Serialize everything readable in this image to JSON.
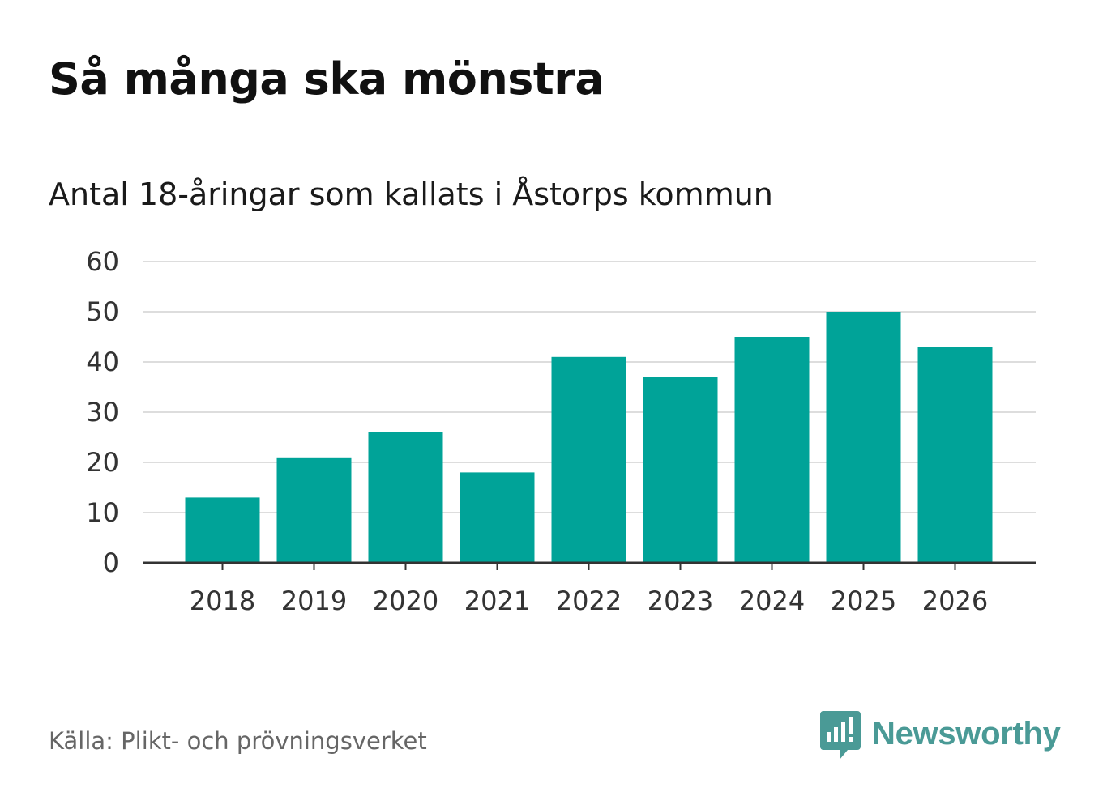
{
  "title": "Så många ska mönstra",
  "subtitle": "Antal 18-åringar som kallats i Åstorps kommun",
  "source": "Källa: Plikt- och prövningsverket",
  "brand": {
    "name": "Newsworthy",
    "icon": "newsworthy-logo-icon",
    "color": "#4a9a96"
  },
  "colors": {
    "bar": "#00a398",
    "grid": "#dddddd",
    "axis": "#333333"
  },
  "chart_data": {
    "type": "bar",
    "title": "Så många ska mönstra",
    "subtitle": "Antal 18-åringar som kallats i Åstorps kommun",
    "xlabel": "",
    "ylabel": "",
    "categories": [
      "2018",
      "2019",
      "2020",
      "2021",
      "2022",
      "2023",
      "2024",
      "2025",
      "2026"
    ],
    "values": [
      13,
      21,
      26,
      18,
      41,
      37,
      45,
      50,
      43
    ],
    "ylim": [
      0,
      60
    ],
    "yticks": [
      0,
      10,
      20,
      30,
      40,
      50,
      60
    ],
    "grid": true,
    "legend": "none"
  }
}
